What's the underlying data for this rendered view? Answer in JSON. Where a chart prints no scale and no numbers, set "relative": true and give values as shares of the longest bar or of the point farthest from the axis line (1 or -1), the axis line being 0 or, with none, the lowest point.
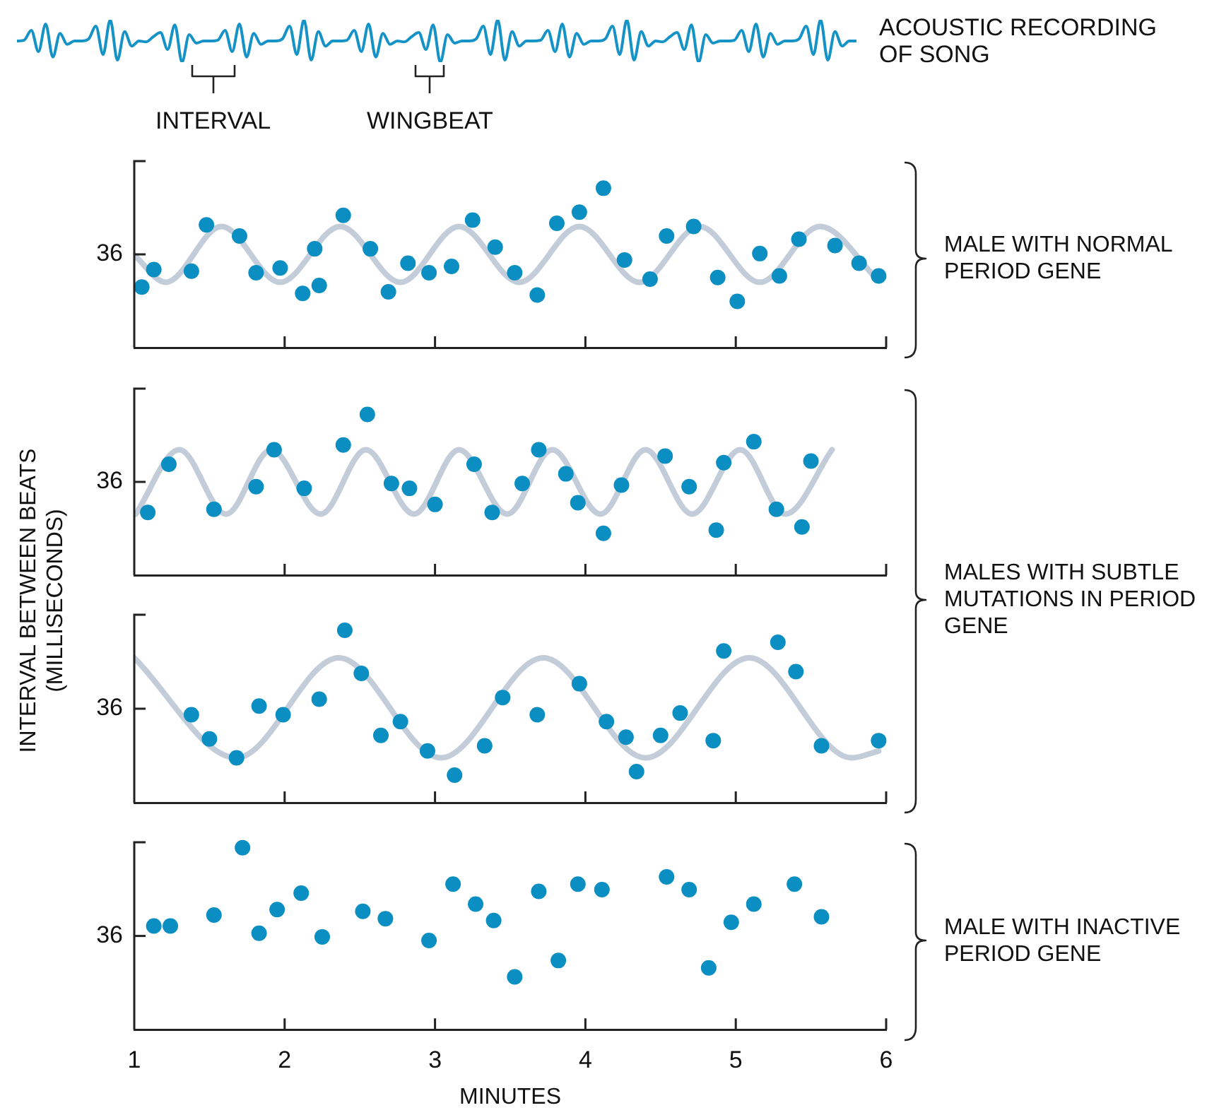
{
  "chart_data": [
    {
      "type": "line",
      "relative": true,
      "tick_labels": false,
      "color": "#1593c6",
      "annotations": [
        "ACOUSTIC RECORDING OF SONG",
        "INTERVAL",
        "WINGBEAT"
      ],
      "categories": [
        null,
        null,
        null,
        null,
        null,
        null,
        null,
        null,
        null,
        null,
        null,
        null,
        null,
        null,
        null,
        null,
        null,
        null,
        null,
        null,
        null,
        null,
        null,
        null,
        null,
        null,
        null,
        null,
        null,
        null,
        null,
        null,
        null,
        null,
        null,
        null,
        null,
        null,
        null,
        null,
        null,
        null,
        null,
        null,
        null,
        null,
        null,
        null,
        null,
        null,
        null,
        null,
        null,
        null,
        null,
        null,
        null,
        null,
        null,
        null,
        null,
        null,
        null,
        null,
        null,
        null,
        null,
        null,
        null,
        null,
        null,
        null,
        null,
        null,
        null,
        null,
        null,
        null,
        null,
        null,
        null,
        null,
        null,
        null,
        null,
        null,
        null,
        null,
        null,
        null,
        null,
        null,
        null,
        null,
        null,
        null,
        null,
        null,
        null,
        null,
        null,
        null,
        null,
        null,
        null,
        null,
        null,
        null,
        null,
        null,
        null,
        null,
        null,
        null,
        null,
        null,
        null,
        null
      ],
      "values": [
        0.5,
        0.52,
        0.75,
        0.25,
        0.9,
        0.12,
        0.68,
        0.42,
        0.5,
        0.5,
        0.55,
        0.85,
        0.18,
        1,
        0.05,
        0.72,
        0.38,
        0.5,
        0.48,
        0.6,
        0.7,
        0.3,
        0.88,
        0,
        0.65,
        0.45,
        0.5,
        0.5,
        0.52,
        0.75,
        0.25,
        0.9,
        0.12,
        0.68,
        0.42,
        0.5,
        0.5,
        0.55,
        0.85,
        0.18,
        1,
        0.05,
        0.72,
        0.38,
        0.5,
        0.5,
        0.52,
        0.75,
        0.25,
        0.9,
        0.12,
        0.68,
        0.42,
        0.5,
        0.48,
        0.6,
        0.7,
        0.3,
        0.88,
        0,
        0.65,
        0.45,
        0.5,
        0.5,
        0.55,
        0.85,
        0.18,
        1,
        0.05,
        0.72,
        0.38,
        0.5,
        0.5,
        0.52,
        0.75,
        0.25,
        0.9,
        0.12,
        0.68,
        0.42,
        0.5,
        0.5,
        0.55,
        0.85,
        0.18,
        1,
        0.05,
        0.72,
        0.38,
        0.5,
        0.48,
        0.6,
        0.7,
        0.3,
        0.88,
        0,
        0.65,
        0.45,
        0.5,
        0.5,
        0.52,
        0.75,
        0.25,
        0.9,
        0.12,
        0.68,
        0.42,
        0.5,
        0.5,
        0.55,
        0.85,
        0.18,
        1,
        0.05,
        0.72,
        0.38,
        0.5,
        0.5
      ]
    },
    {
      "type": "scatter",
      "relative": true,
      "xlim": [
        1,
        6
      ],
      "xticks": [
        1,
        2,
        3,
        4,
        5,
        6
      ],
      "tick_labels": false,
      "ylabel": "INTERVAL BETWEEN BEATS (MILLISECONDS)",
      "annotations": [
        "36",
        "MALE WITH NORMAL PERIOD GENE"
      ],
      "series": [
        {
          "type": "scatter",
          "marker": "circle",
          "color": "#0b8ec2",
          "x": [
            1.05,
            1.13,
            1.38,
            1.48,
            1.7,
            1.81,
            1.97,
            2.12,
            2.2,
            2.23,
            2.39,
            2.57,
            2.69,
            2.82,
            2.96,
            3.11,
            3.25,
            3.4,
            3.53,
            3.68,
            3.81,
            3.96,
            4.12,
            4.26,
            4.43,
            4.54,
            4.72,
            4.88,
            5.01,
            5.16,
            5.29,
            5.42,
            5.66,
            5.82,
            5.95
          ],
          "values": [
            0.38,
            0.49,
            0.48,
            0.77,
            0.7,
            0.47,
            0.5,
            0.34,
            0.62,
            0.39,
            0.83,
            0.62,
            0.35,
            0.53,
            0.47,
            0.51,
            0.8,
            0.63,
            0.47,
            0.33,
            0.78,
            0.85,
            1,
            0.55,
            0.43,
            0.7,
            0.76,
            0.44,
            0.29,
            0.59,
            0.45,
            0.68,
            0.64,
            0.53,
            0.45
          ]
        },
        {
          "type": "line",
          "marker": "none",
          "color": "#c3cdd9",
          "x": [
            1,
            1.21,
            1.58,
            1.97,
            2.37,
            2.77,
            3.16,
            3.56,
            3.96,
            4.36,
            4.76,
            5.16,
            5.56,
            5.95
          ],
          "values": [
            0.58,
            0.41,
            0.76,
            0.41,
            0.76,
            0.41,
            0.76,
            0.41,
            0.76,
            0.41,
            0.76,
            0.41,
            0.76,
            0.42
          ]
        }
      ]
    },
    {
      "type": "scatter",
      "relative": true,
      "xlim": [
        1,
        6
      ],
      "xticks": [
        1,
        2,
        3,
        4,
        5,
        6
      ],
      "tick_labels": false,
      "annotations": [
        "36",
        "MALES WITH SUBTLE MUTATIONS IN PERIOD GENE"
      ],
      "series": [
        {
          "type": "scatter",
          "marker": "circle",
          "color": "#0b8ec2",
          "x": [
            1.09,
            1.23,
            1.53,
            1.81,
            1.93,
            2.13,
            2.39,
            2.55,
            2.71,
            2.83,
            3,
            3.26,
            3.38,
            3.58,
            3.69,
            3.87,
            3.95,
            4.12,
            4.24,
            4.53,
            4.69,
            4.87,
            4.92,
            5.12,
            5.27,
            5.44,
            5.5
          ],
          "values": [
            0.39,
            0.69,
            0.41,
            0.55,
            0.78,
            0.54,
            0.81,
            1,
            0.57,
            0.54,
            0.44,
            0.69,
            0.39,
            0.57,
            0.78,
            0.63,
            0.45,
            0.26,
            0.56,
            0.74,
            0.55,
            0.28,
            0.7,
            0.83,
            0.41,
            0.3,
            0.71
          ]
        },
        {
          "type": "line",
          "marker": "none",
          "color": "#c3cdd9",
          "x": [
            1.01,
            1.3,
            1.61,
            1.91,
            2.24,
            2.54,
            2.86,
            3.16,
            3.48,
            3.78,
            4.1,
            4.4,
            4.71,
            5.03,
            5.33,
            5.64
          ],
          "values": [
            0.38,
            0.78,
            0.38,
            0.78,
            0.38,
            0.78,
            0.38,
            0.78,
            0.38,
            0.78,
            0.38,
            0.78,
            0.38,
            0.78,
            0.38,
            0.78
          ]
        }
      ]
    },
    {
      "type": "scatter",
      "relative": true,
      "xlim": [
        1,
        6
      ],
      "xticks": [
        1,
        2,
        3,
        4,
        5,
        6
      ],
      "tick_labels": false,
      "annotations": [
        "36"
      ],
      "series": [
        {
          "type": "scatter",
          "marker": "circle",
          "color": "#0b8ec2",
          "x": [
            1.38,
            1.5,
            1.68,
            1.83,
            1.99,
            2.23,
            2.4,
            2.51,
            2.64,
            2.77,
            2.95,
            3.13,
            3.33,
            3.45,
            3.68,
            3.96,
            4.14,
            4.27,
            4.34,
            4.5,
            4.63,
            4.85,
            4.92,
            5.28,
            5.4,
            5.57,
            5.95
          ],
          "values": [
            0.51,
            0.37,
            0.26,
            0.56,
            0.51,
            0.6,
            1,
            0.75,
            0.39,
            0.47,
            0.3,
            0.16,
            0.33,
            0.61,
            0.51,
            0.69,
            0.47,
            0.38,
            0.18,
            0.39,
            0.52,
            0.36,
            0.88,
            0.93,
            0.76,
            0.33,
            0.36
          ]
        },
        {
          "type": "line",
          "marker": "none",
          "color": "#c3cdd9",
          "x": [
            1,
            1.68,
            2.36,
            3.04,
            3.72,
            4.4,
            5.09,
            5.77,
            5.95
          ],
          "values": [
            0.84,
            0.26,
            0.84,
            0.26,
            0.84,
            0.26,
            0.84,
            0.26,
            0.3
          ]
        }
      ]
    },
    {
      "type": "scatter",
      "relative": true,
      "xlim": [
        1,
        6
      ],
      "xticks": [
        1,
        2,
        3,
        4,
        5,
        6
      ],
      "tick_labels": "x",
      "xlabel": "MINUTES",
      "annotations": [
        "36",
        "MALE WITH INACTIVE PERIOD GENE"
      ],
      "series": [
        {
          "type": "scatter",
          "marker": "circle",
          "color": "#0b8ec2",
          "x": [
            1.13,
            1.24,
            1.53,
            1.72,
            1.83,
            1.95,
            2.11,
            2.25,
            2.52,
            2.67,
            2.96,
            3.12,
            3.27,
            3.39,
            3.53,
            3.69,
            3.82,
            3.95,
            4.11,
            4.54,
            4.69,
            4.82,
            4.97,
            5.12,
            5.39,
            5.57
          ],
          "values": [
            0.57,
            0.57,
            0.63,
            1,
            0.53,
            0.66,
            0.75,
            0.51,
            0.65,
            0.61,
            0.49,
            0.8,
            0.69,
            0.6,
            0.29,
            0.76,
            0.38,
            0.8,
            0.77,
            0.84,
            0.77,
            0.34,
            0.59,
            0.69,
            0.8,
            0.62
          ]
        }
      ]
    }
  ]
}
